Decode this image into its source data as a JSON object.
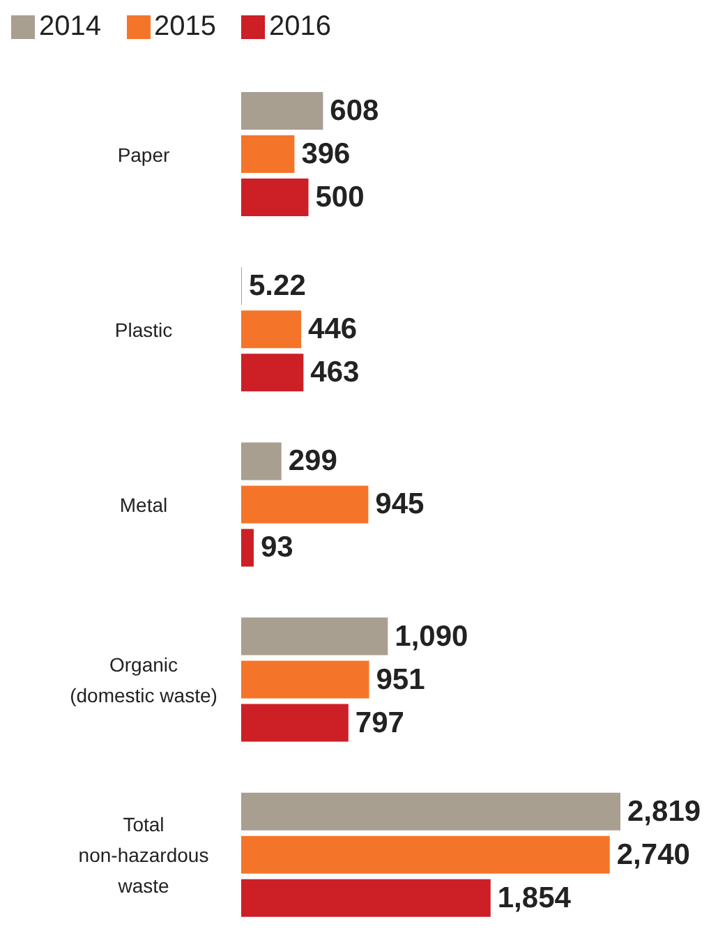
{
  "chart_data": {
    "type": "bar",
    "orientation": "horizontal",
    "categories": [
      "Paper",
      "Plastic",
      "Metal",
      "Organic (domestic waste)",
      "Total non-hazardous waste"
    ],
    "series": [
      {
        "name": "2014",
        "color": "#a89f91",
        "values": [
          608,
          5.22,
          299,
          1090,
          2819
        ],
        "value_labels": [
          "608",
          "5.22",
          "299",
          "1,090",
          "2,819"
        ]
      },
      {
        "name": "2015",
        "color": "#f47529",
        "values": [
          396,
          446,
          945,
          951,
          2740
        ],
        "value_labels": [
          "396",
          "446",
          "945",
          "951",
          "2,740"
        ]
      },
      {
        "name": "2016",
        "color": "#cc1f26",
        "values": [
          500,
          463,
          93,
          797,
          1854
        ],
        "value_labels": [
          "500",
          "463",
          "93",
          "797",
          "1,854"
        ]
      }
    ],
    "legend": "top left",
    "grid": false,
    "tick_labels": "y"
  }
}
